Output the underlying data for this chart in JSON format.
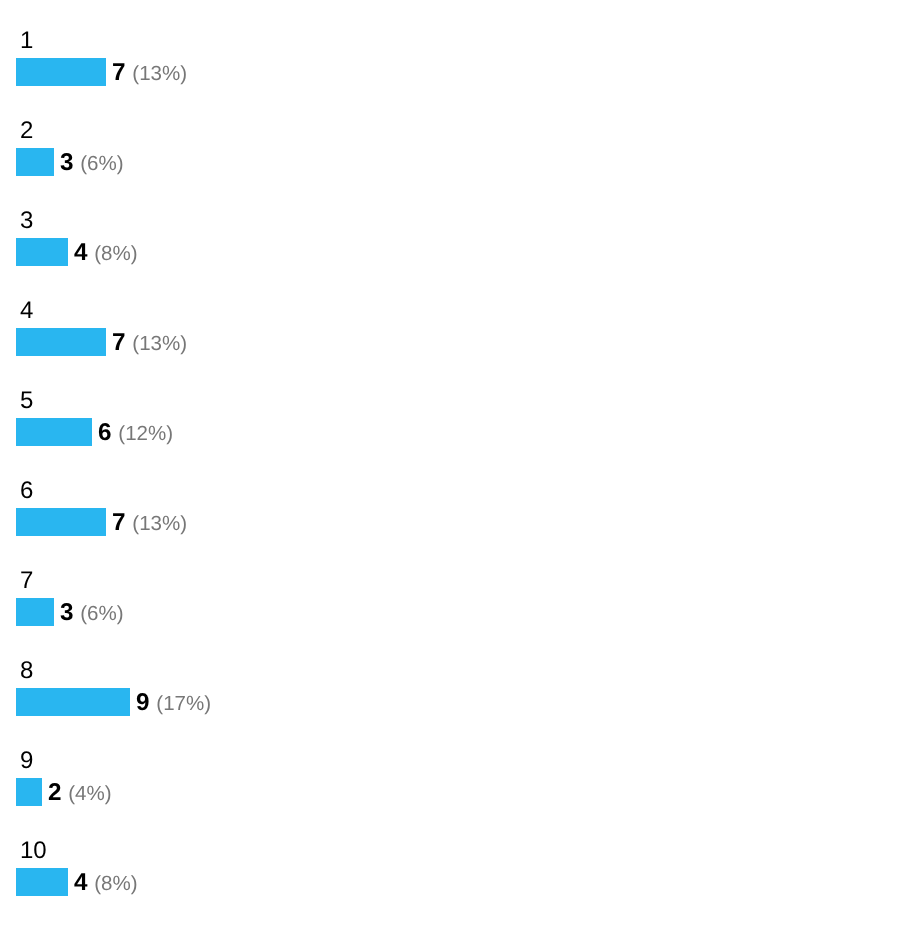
{
  "chart_data": {
    "type": "bar",
    "orientation": "horizontal",
    "categories": [
      "1",
      "2",
      "3",
      "4",
      "5",
      "6",
      "7",
      "8",
      "9",
      "10"
    ],
    "values": [
      7,
      3,
      4,
      7,
      6,
      7,
      3,
      9,
      2,
      4
    ],
    "value_labels": [
      "7 (13%)",
      "3 (6%)",
      "4 (8%)",
      "7 (13%)",
      "6 (12%)",
      "7 (13%)",
      "3 (6%)",
      "9 (17%)",
      "2 (4%)",
      "4 (8%)"
    ],
    "color": "#29b6f0"
  }
}
